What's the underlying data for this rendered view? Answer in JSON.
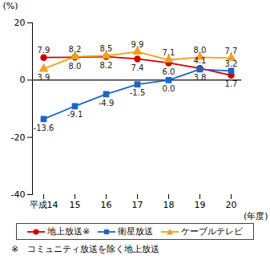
{
  "chart_data": {
    "type": "line",
    "categories": [
      "平成14",
      "15",
      "16",
      "17",
      "18",
      "19",
      "20"
    ],
    "xlabel": "(年度)",
    "ylabel": "(%)",
    "ylim": [
      -40,
      20
    ],
    "yticks": [
      -40,
      -20,
      0,
      20
    ],
    "data_labels": true,
    "legend": "bottom",
    "annotations": [
      "※　コミュニティ放送を除く地上放送"
    ],
    "series": [
      {
        "name": "地上放送※",
        "color": "#cc0000",
        "marker": "circle",
        "values": [
          7.9,
          8.0,
          8.2,
          7.4,
          6.0,
          4.1,
          1.7
        ],
        "value_labels": [
          "7.9",
          "8.0",
          "8.2",
          "7.4",
          "6.0",
          "4.1",
          "1.7"
        ]
      },
      {
        "name": "衛星放送",
        "color": "#1f63c6",
        "marker": "square",
        "values": [
          -13.6,
          -9.1,
          -4.9,
          -1.5,
          0.0,
          3.8,
          3.2
        ],
        "value_labels": [
          "-13.6",
          "-9.1",
          "-4.9",
          "-1.5",
          "0.0",
          "3.8",
          "3.2"
        ]
      },
      {
        "name": "ケーブルテレビ",
        "color": "#f0a020",
        "marker": "triangle",
        "values": [
          3.9,
          8.2,
          8.5,
          9.9,
          7.1,
          8.0,
          7.7
        ],
        "value_labels": [
          "3.9",
          "8.2",
          "8.5",
          "9.9",
          "7.1",
          "8.0",
          "7.7"
        ]
      }
    ]
  }
}
